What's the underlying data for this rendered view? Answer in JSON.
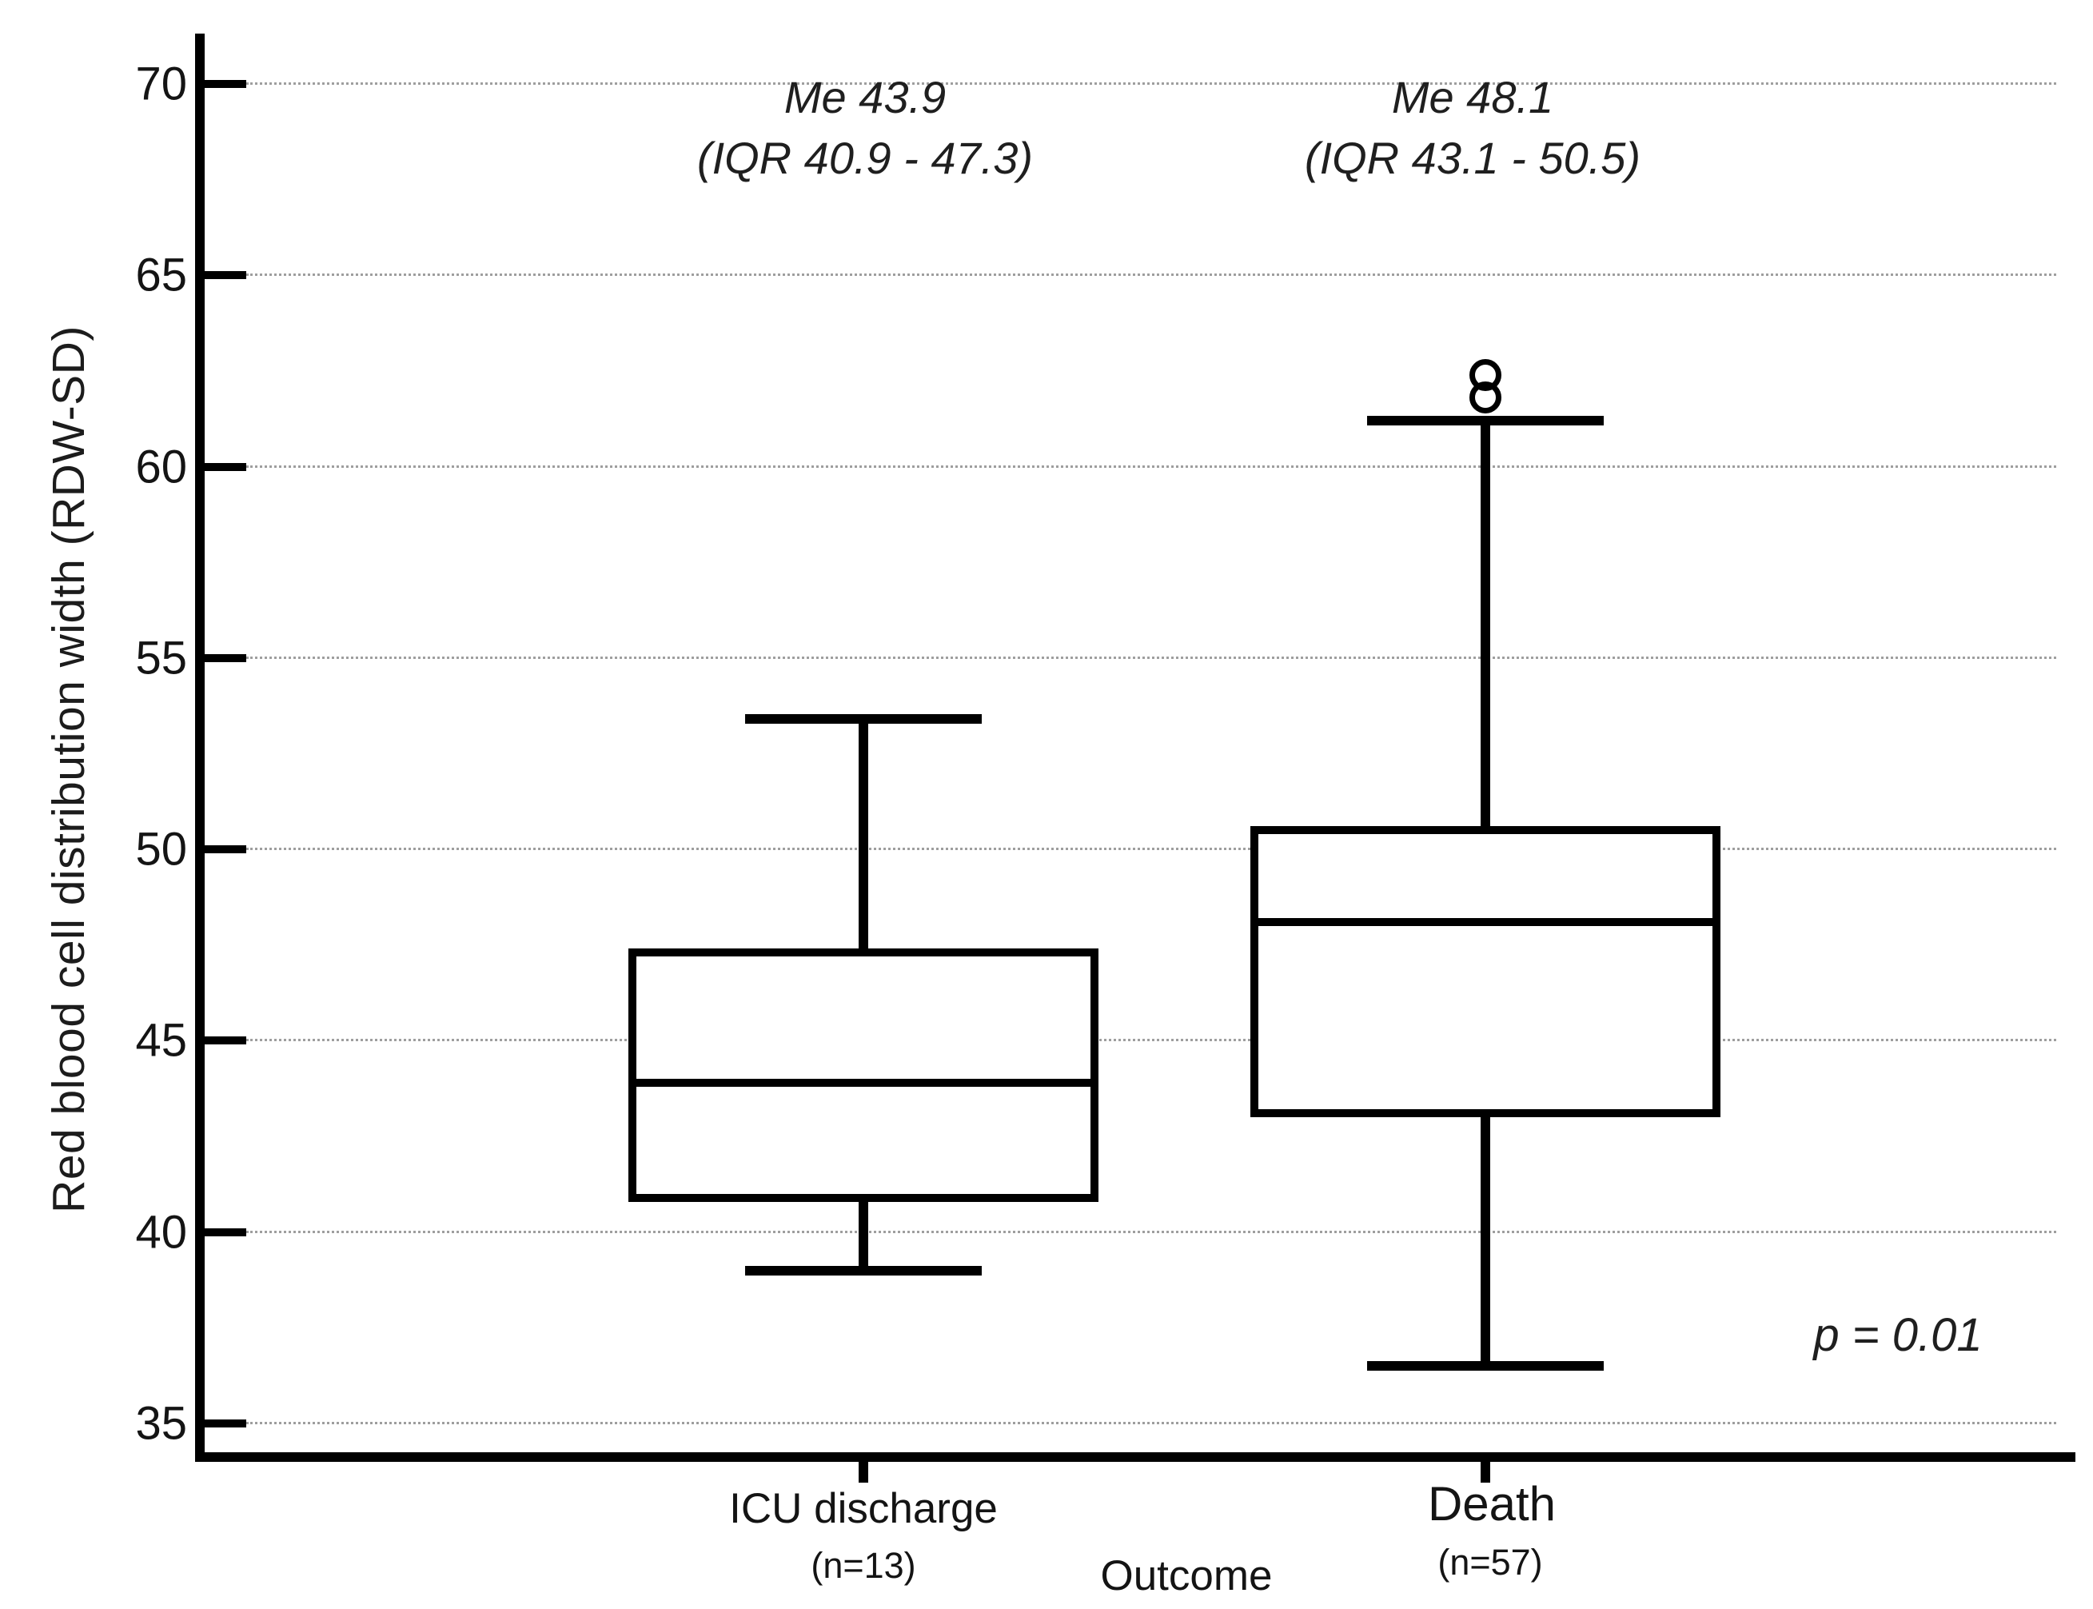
{
  "figure": {
    "background": "#ffffff"
  },
  "chart_data": {
    "type": "boxplot",
    "title": "",
    "ylabel": "Red blood cell distribution width (RDW-SD)",
    "xlabel": "Outcome",
    "ylim": [
      33.6,
      71.3
    ],
    "yticks": [
      35,
      40,
      45,
      50,
      55,
      60,
      65,
      70
    ],
    "grid": "horizontal-dotted",
    "legend": "none",
    "categories": [
      "ICU discharge",
      "Death"
    ],
    "groups": [
      {
        "label": "ICU discharge",
        "n_label": "(n=13)",
        "median": 43.9,
        "q1": 40.9,
        "q3": 47.3,
        "whisker_low": 39.0,
        "whisker_high": 53.4,
        "outliers": [],
        "annotation_line1": "Me 43.9",
        "annotation_line2": "(IQR 40.9 - 47.3)"
      },
      {
        "label": "Death",
        "n_label": "(n=57)",
        "median": 48.1,
        "q1": 43.1,
        "q3": 50.5,
        "whisker_low": 36.5,
        "whisker_high": 61.2,
        "outliers": [
          61.8,
          62.4
        ],
        "annotation_line1": "Me 48.1",
        "annotation_line2": "(IQR 43.1 - 50.5)"
      }
    ],
    "p_value_label": "p = 0.01",
    "colors": {
      "line": "#000000",
      "gridline": "#9e9e9e",
      "text": "#1c1c1c",
      "box_fill": "#ffffff"
    }
  }
}
